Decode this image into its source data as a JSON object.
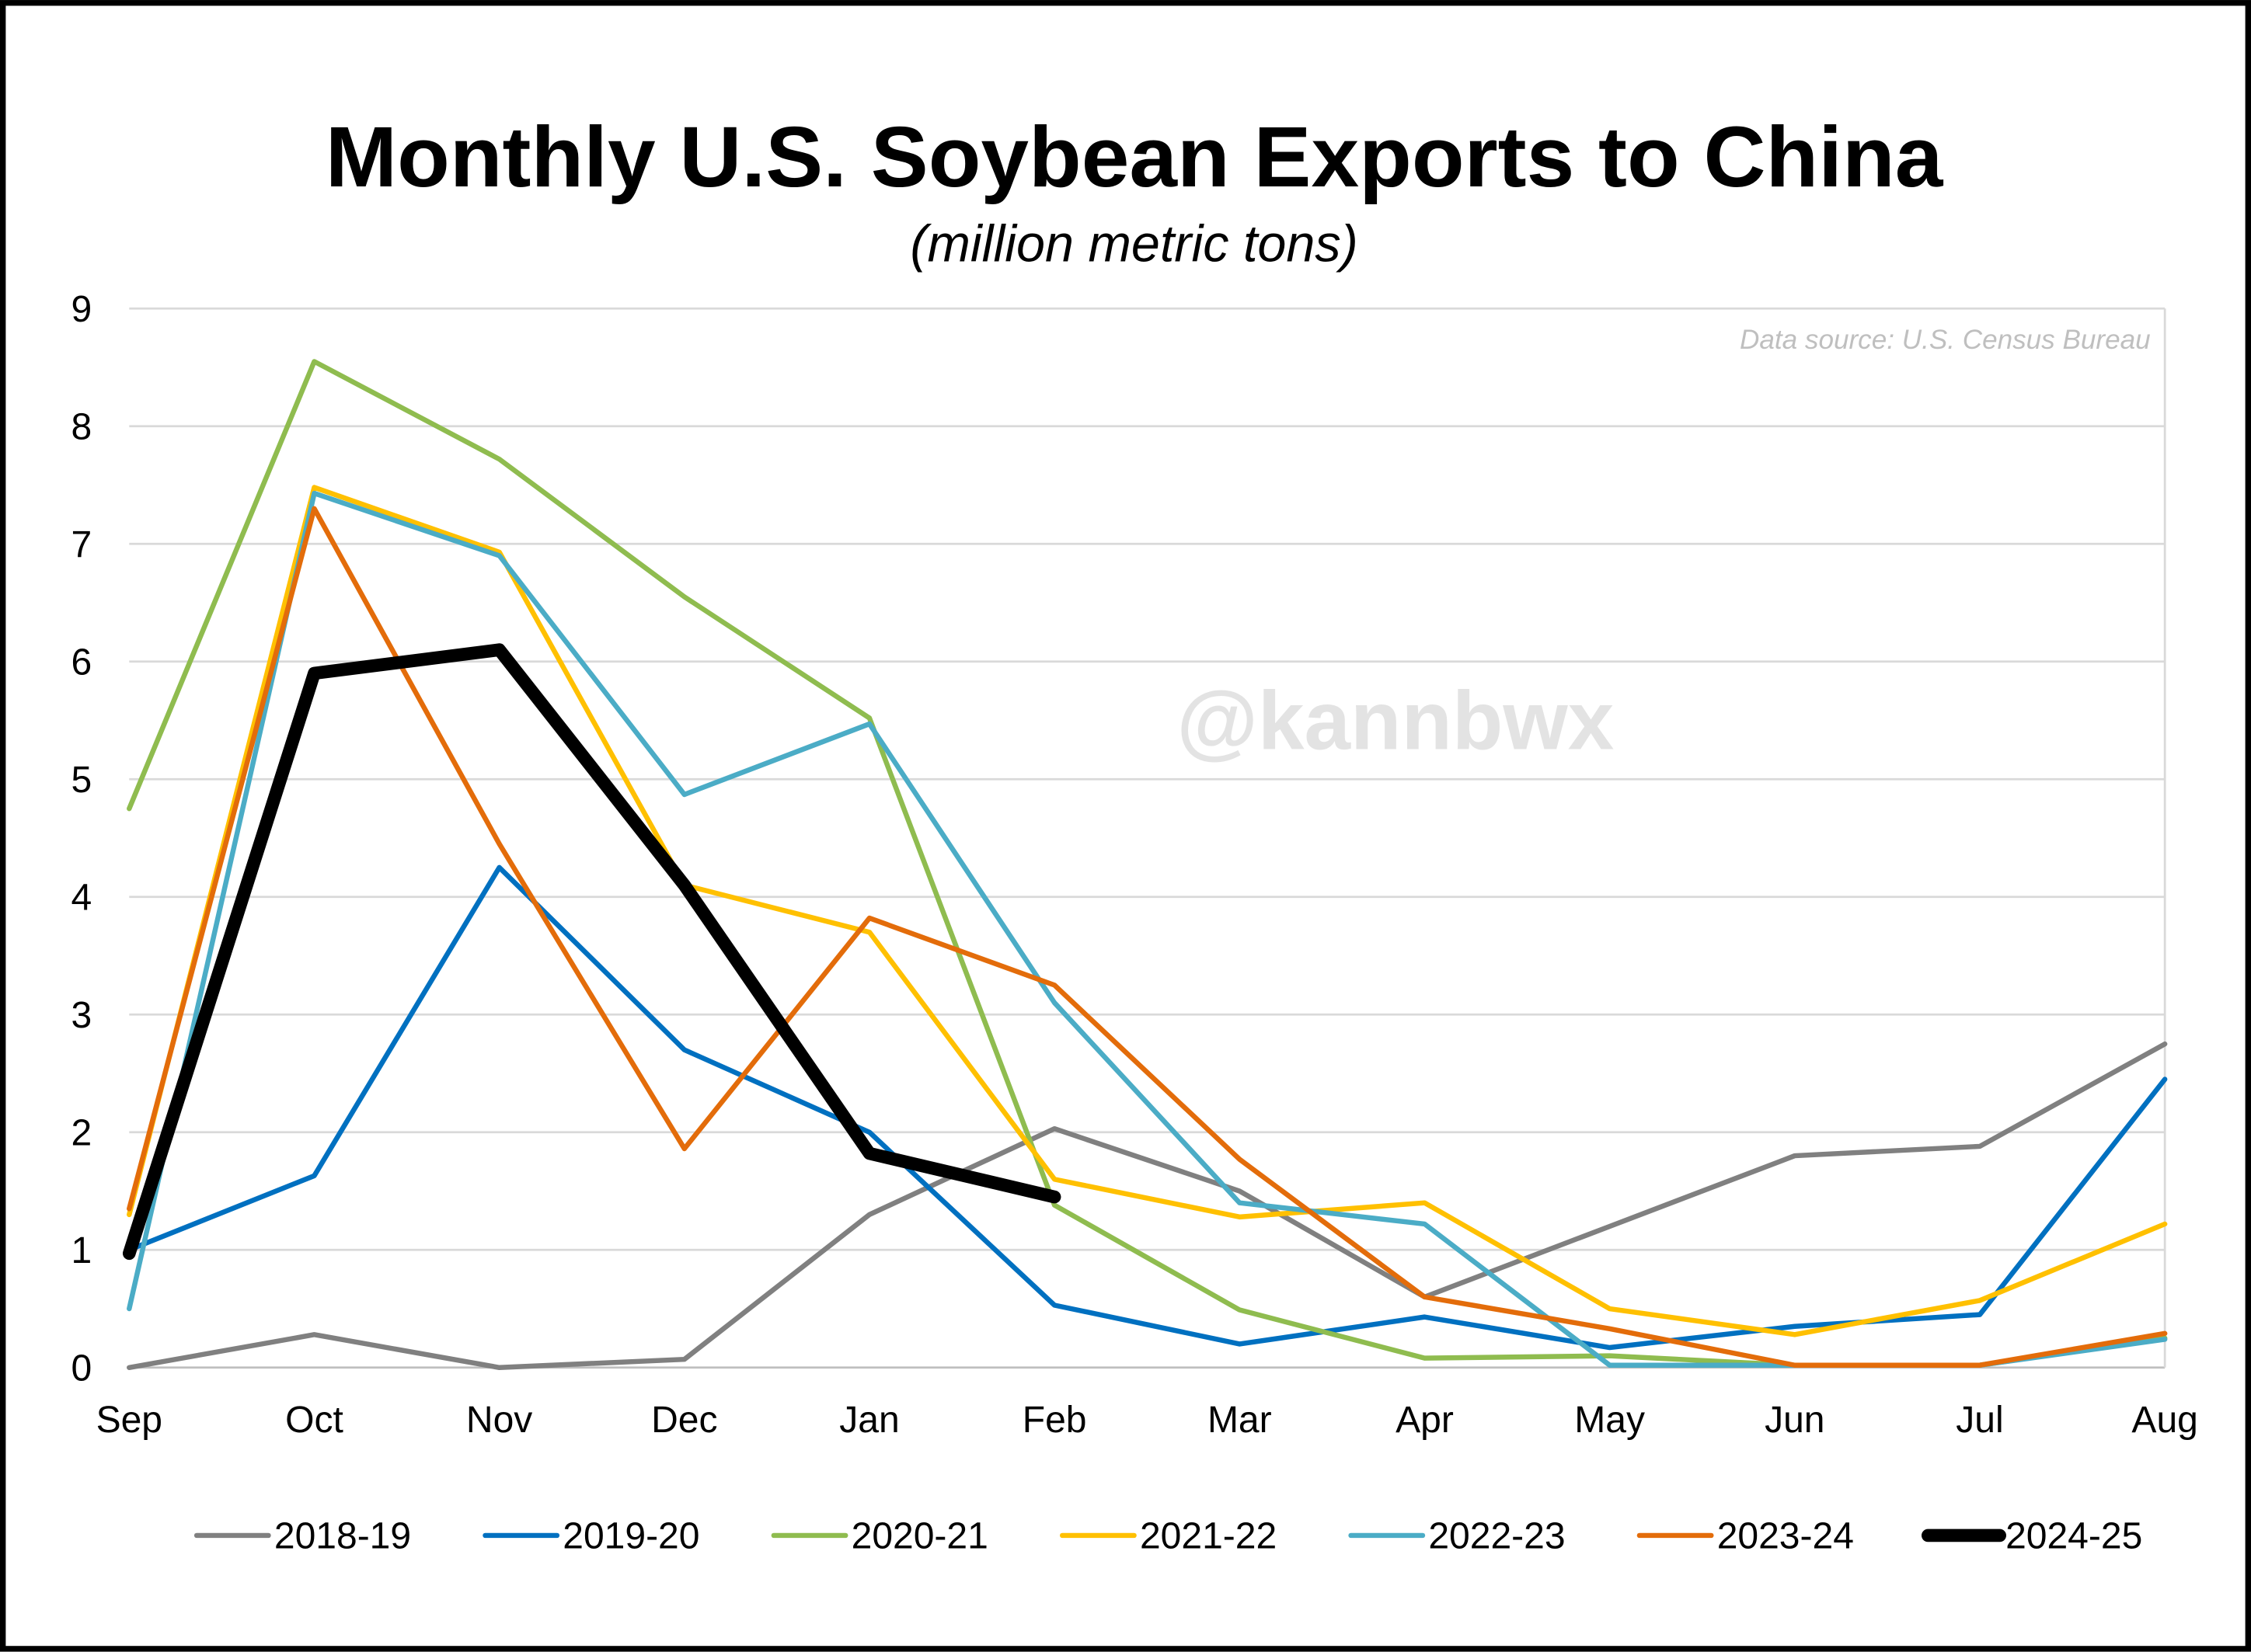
{
  "chart_data": {
    "type": "line",
    "title": "Monthly U.S. Soybean Exports to China",
    "subtitle": "(million metric tons)",
    "annotations": [
      "Data source: U.S. Census Bureau",
      "@kannbwx"
    ],
    "categories": [
      "Sep",
      "Oct",
      "Nov",
      "Dec",
      "Jan",
      "Feb",
      "Mar",
      "Apr",
      "May",
      "Jun",
      "Jul",
      "Aug"
    ],
    "ylim": [
      0,
      9
    ],
    "yticks": [
      0,
      1,
      2,
      3,
      4,
      5,
      6,
      7,
      8,
      9
    ],
    "grid": true,
    "legend": "bottom",
    "series": [
      {
        "name": "2018-19",
        "color": "#808080",
        "values": [
          0,
          0.28,
          0,
          0.07,
          1.3,
          2.03,
          1.5,
          0.6,
          1.2,
          1.8,
          1.88,
          2.75
        ]
      },
      {
        "name": "2019-20",
        "color": "#0070c0",
        "values": [
          1.0,
          1.63,
          4.25,
          2.7,
          2.0,
          0.53,
          0.2,
          0.43,
          0.17,
          0.35,
          0.45,
          2.45
        ]
      },
      {
        "name": "2020-21",
        "color": "#8fbc4f",
        "values": [
          4.75,
          8.55,
          7.72,
          6.55,
          5.52,
          1.38,
          0.49,
          0.08,
          0.1,
          0.02,
          0.02,
          0.25
        ]
      },
      {
        "name": "2021-22",
        "color": "#ffc000",
        "values": [
          1.3,
          7.48,
          6.93,
          4.1,
          3.7,
          1.6,
          1.28,
          1.4,
          0.5,
          0.28,
          0.57,
          1.22
        ]
      },
      {
        "name": "2022-23",
        "color": "#4bacc6",
        "values": [
          0.5,
          7.43,
          6.9,
          4.87,
          5.47,
          3.1,
          1.4,
          1.22,
          0.02,
          0.02,
          0.02,
          0.24
        ]
      },
      {
        "name": "2023-24",
        "color": "#e36c0a",
        "values": [
          1.35,
          7.3,
          4.45,
          1.86,
          3.82,
          3.25,
          1.77,
          0.6,
          0.33,
          0.02,
          0.02,
          0.29
        ]
      },
      {
        "name": "2024-25",
        "color": "#000000",
        "values": [
          0.97,
          5.9,
          6.1,
          4.1,
          1.82,
          1.45,
          null,
          null,
          null,
          null,
          null,
          null
        ]
      }
    ]
  }
}
